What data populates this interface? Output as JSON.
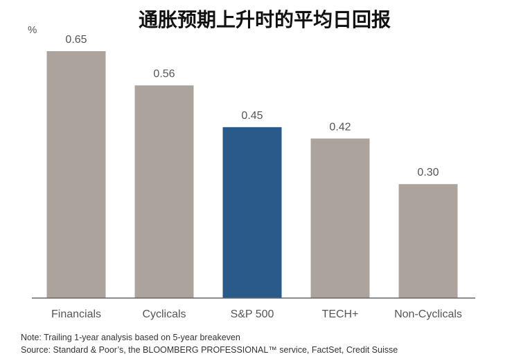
{
  "chart_data": {
    "type": "bar",
    "title": "通胀预期上升时的平均日回报",
    "unit": "%",
    "categories": [
      "Financials",
      "Cyclicals",
      "S&P 500",
      "TECH+",
      "Non-Cyclicals"
    ],
    "values": [
      0.65,
      0.56,
      0.45,
      0.42,
      0.3
    ],
    "value_labels": [
      "0.65",
      "0.56",
      "0.45",
      "0.42",
      "0.30"
    ],
    "highlight_category": "S&P 500",
    "ylim": [
      0,
      0.7
    ],
    "grid": false,
    "colors": {
      "bar": "#aca49c",
      "highlight": "#295a8a",
      "axis": "#666666"
    },
    "note": "Note: Trailing 1-year analysis based on 5-year breakeven",
    "source": "Source: Standard & Poor’s, the BLOOMBERG PROFESSIONAL™ service, FactSet, Credit Suisse"
  }
}
